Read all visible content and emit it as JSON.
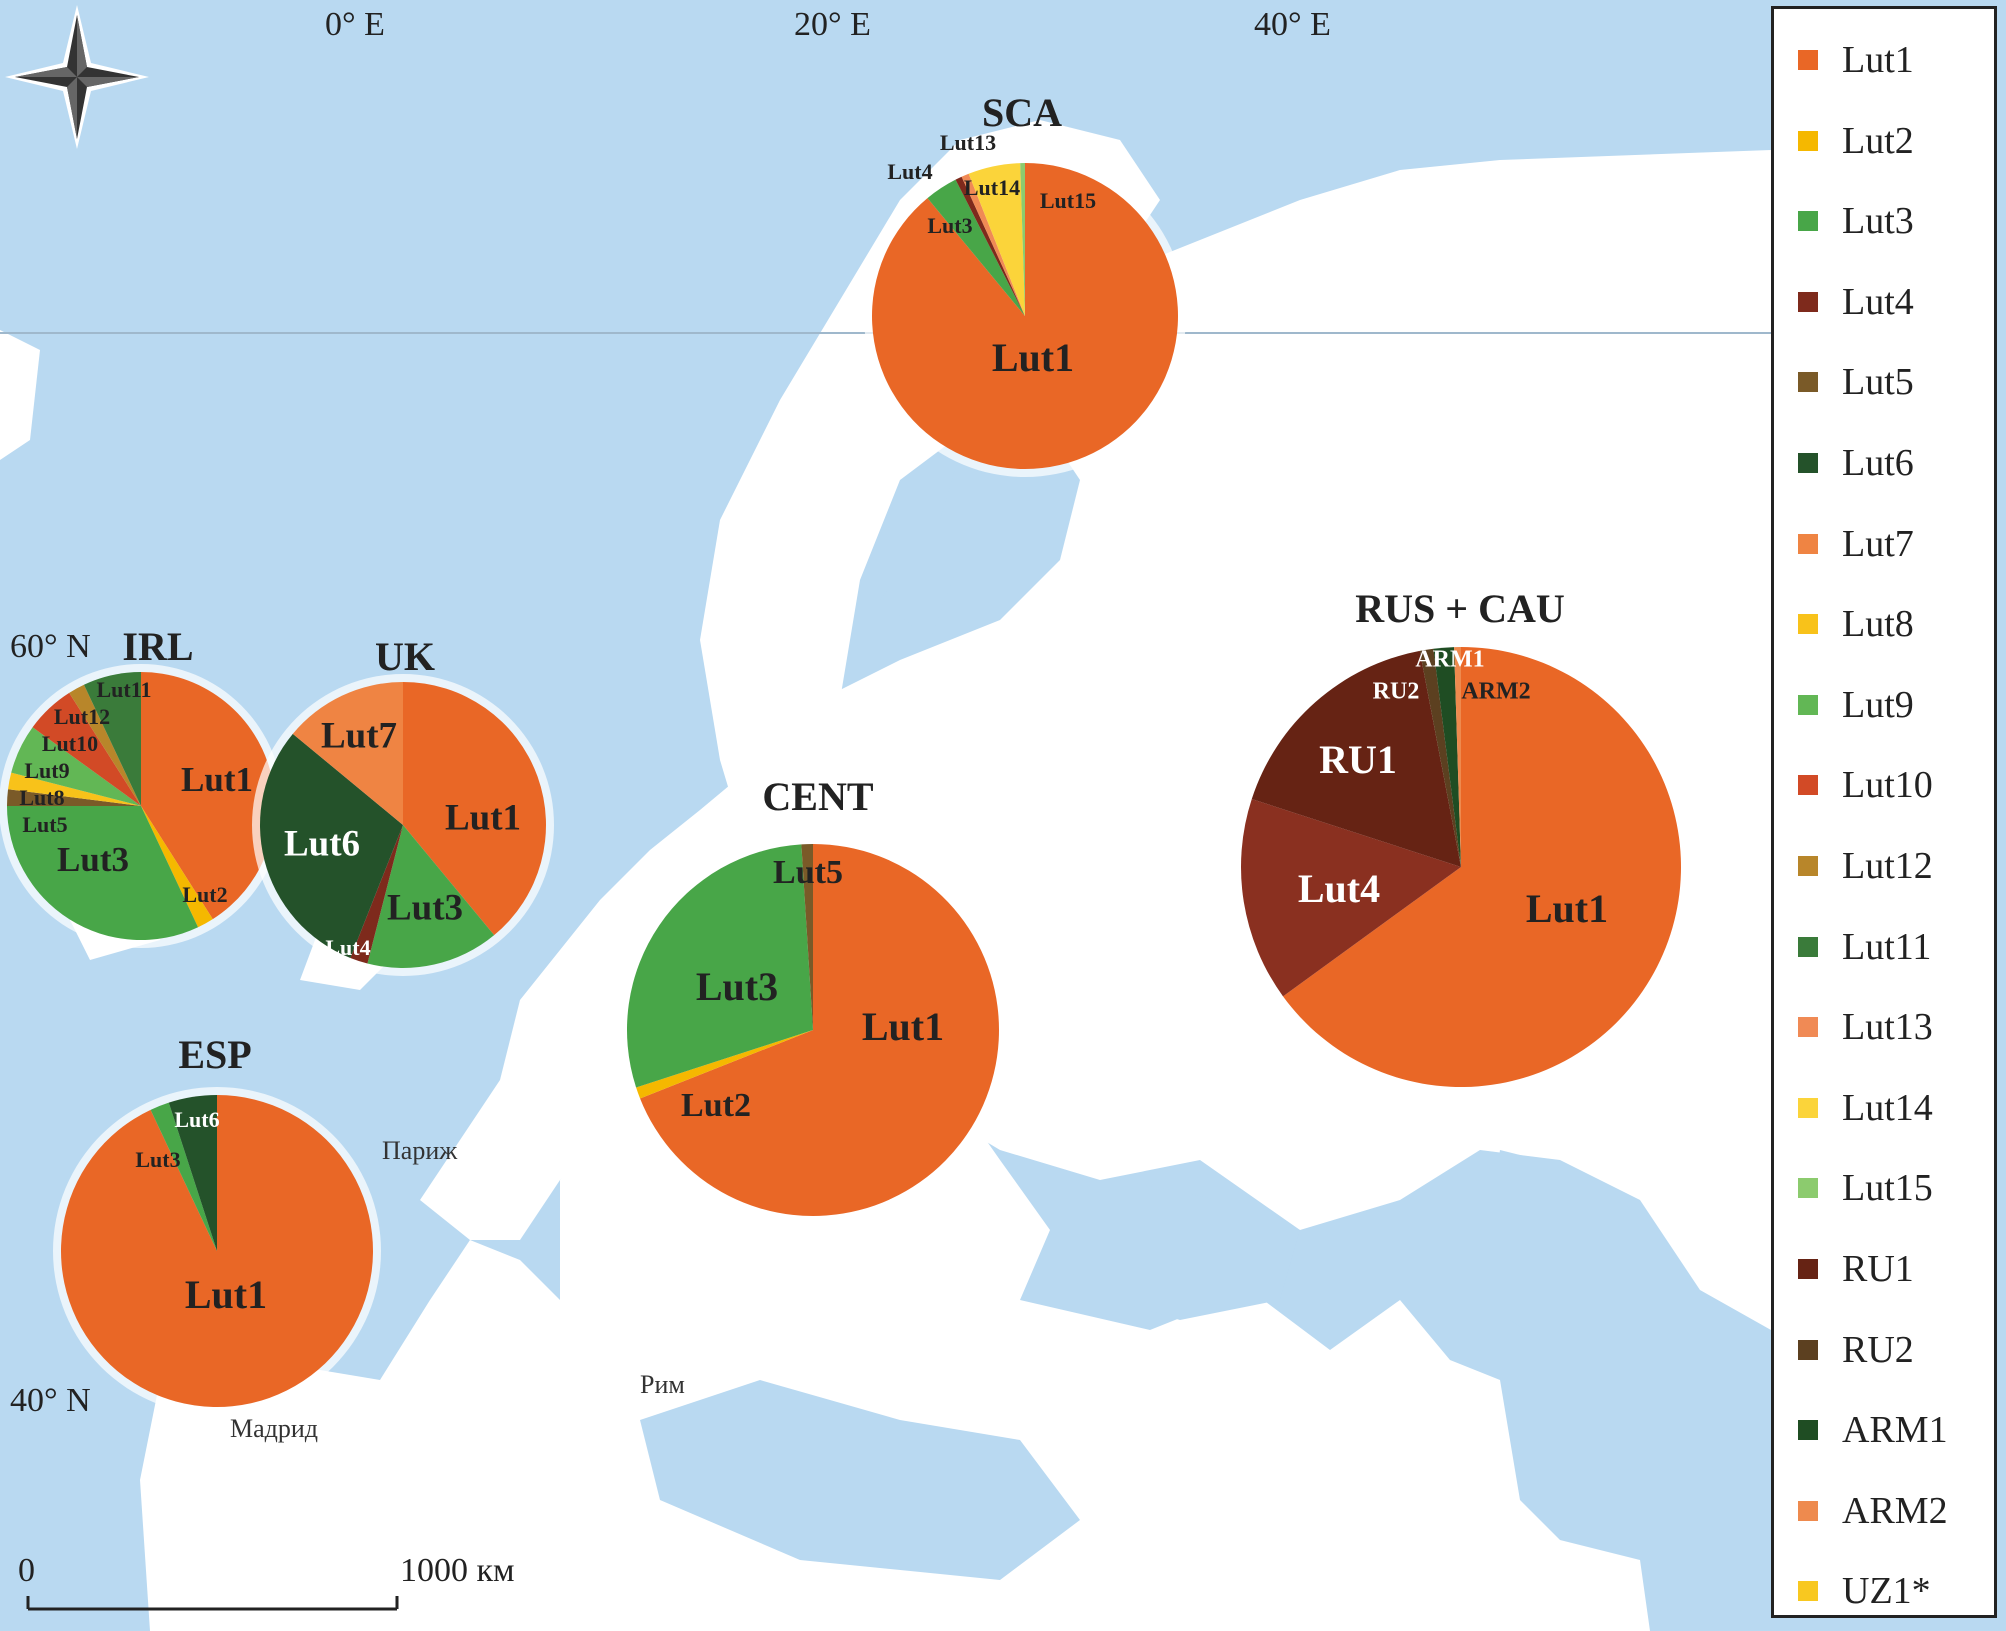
{
  "map_labels": {
    "lon": [
      "0° E",
      "20° E",
      "40° E"
    ],
    "lat": [
      "60° N",
      "40° N"
    ],
    "cities": [
      "Париж",
      "Рим",
      "Мадрид"
    ],
    "scale": {
      "start": "0",
      "end": "1000 км"
    }
  },
  "colors": {
    "Lut1": "#E96726",
    "Lut2": "#F5B800",
    "Lut3": "#48A648",
    "Lut4": "#7E2A1C",
    "Lut5": "#7A5A28",
    "Lut6": "#24522A",
    "Lut7": "#EF8443",
    "Lut8": "#F8C21A",
    "Lut9": "#62B755",
    "Lut10": "#D24A26",
    "Lut12": "#B8862A",
    "Lut11": "#3A7B3A",
    "Lut13": "#F08A55",
    "Lut14": "#FBD43A",
    "Lut15": "#8CCB6E",
    "RU1": "#662314",
    "RU2": "#5C4020",
    "ARM1": "#1F4D23",
    "ARM2": "#EE8A4E",
    "UZ1*": "#F8C820",
    "sea": "#b9d9f1",
    "land": "#ffffff"
  },
  "legend": [
    "Lut1",
    "Lut2",
    "Lut3",
    "Lut4",
    "Lut5",
    "Lut6",
    "Lut7",
    "Lut8",
    "Lut9",
    "Lut10",
    "Lut12",
    "Lut11",
    "Lut13",
    "Lut14",
    "Lut15",
    "RU1",
    "RU2",
    "ARM1",
    "ARM2",
    "UZ1*"
  ],
  "chart_data": {
    "type": "pie",
    "unit": "percent of haplotypes (estimated)",
    "pies": [
      {
        "title": "SCA",
        "slices": [
          [
            "Lut1",
            89
          ],
          [
            "Lut3",
            3.5
          ],
          [
            "Lut4",
            0.7
          ],
          [
            "Lut13",
            0.8
          ],
          [
            "Lut14",
            5.5
          ],
          [
            "Lut15",
            0.5
          ]
        ]
      },
      {
        "title": "IRL",
        "slices": [
          [
            "Lut1",
            41
          ],
          [
            "Lut2",
            2
          ],
          [
            "Lut3",
            32
          ],
          [
            "Lut5",
            2
          ],
          [
            "Lut8",
            2
          ],
          [
            "Lut9",
            6
          ],
          [
            "Lut10",
            6
          ],
          [
            "Lut12",
            2
          ],
          [
            "Lut11",
            7
          ]
        ]
      },
      {
        "title": "UK",
        "slices": [
          [
            "Lut1",
            39
          ],
          [
            "Lut3",
            15
          ],
          [
            "Lut4",
            2
          ],
          [
            "Lut6",
            30
          ],
          [
            "Lut7",
            14
          ]
        ]
      },
      {
        "title": "CENT",
        "slices": [
          [
            "Lut1",
            69
          ],
          [
            "Lut2",
            1
          ],
          [
            "Lut3",
            29
          ],
          [
            "Lut5",
            1
          ]
        ]
      },
      {
        "title": "ESP",
        "slices": [
          [
            "Lut1",
            93
          ],
          [
            "Lut3",
            2
          ],
          [
            "Lut6",
            5
          ]
        ]
      },
      {
        "title": "RUS + CAU",
        "slices": [
          [
            "Lut1",
            65
          ],
          [
            "Lut4",
            15
          ],
          [
            "RU1",
            17
          ],
          [
            "RU2",
            1
          ],
          [
            "ARM1",
            1.5
          ],
          [
            "ARM2",
            0.5
          ]
        ]
      }
    ]
  }
}
